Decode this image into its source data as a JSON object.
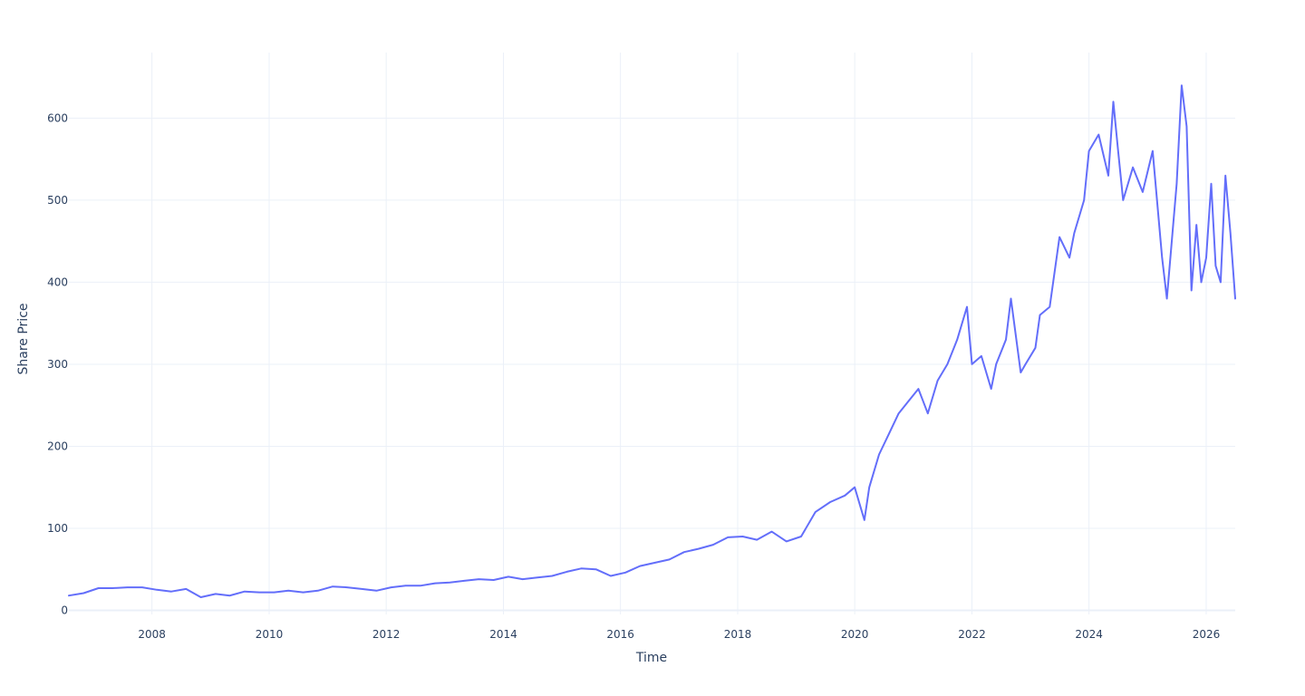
{
  "chart_data": {
    "type": "line",
    "title": "",
    "xlabel": "Time",
    "ylabel": "Share Price",
    "x_tick_labels": [
      "2008",
      "2010",
      "2012",
      "2014",
      "2016",
      "2018",
      "2020",
      "2022",
      "2024",
      "2026"
    ],
    "y_tick_labels": [
      "0",
      "100",
      "200",
      "300",
      "400",
      "500",
      "600"
    ],
    "x_range": [
      "2006-08-01",
      "2026-07-01"
    ],
    "ylim": [
      -5,
      680
    ],
    "grid": true,
    "legend": "none",
    "colors": {
      "line": "#636efa",
      "grid": "#ebf0f8",
      "text": "#2a3f5f",
      "background": "#ffffff"
    },
    "series": [
      {
        "x": [
          "2006-08",
          "2006-11",
          "2007-02",
          "2007-05",
          "2007-08",
          "2007-11",
          "2008-02",
          "2008-05",
          "2008-08",
          "2008-11",
          "2009-02",
          "2009-05",
          "2009-08",
          "2009-11",
          "2010-02",
          "2010-05",
          "2010-08",
          "2010-11",
          "2011-02",
          "2011-05",
          "2011-08",
          "2011-11",
          "2012-02",
          "2012-05",
          "2012-08",
          "2012-11",
          "2013-02",
          "2013-05",
          "2013-08",
          "2013-11",
          "2014-02",
          "2014-05",
          "2014-08",
          "2014-11",
          "2015-02",
          "2015-05",
          "2015-08",
          "2015-11",
          "2016-02",
          "2016-05",
          "2016-08",
          "2016-11",
          "2017-02",
          "2017-05",
          "2017-08",
          "2017-11",
          "2018-02",
          "2018-05",
          "2018-08",
          "2018-11",
          "2019-02",
          "2019-05",
          "2019-08",
          "2019-11",
          "2020-01",
          "2020-03",
          "2020-04",
          "2020-06",
          "2020-08",
          "2020-10",
          "2020-12",
          "2021-02",
          "2021-04",
          "2021-06",
          "2021-08",
          "2021-10",
          "2021-12",
          "2022-01",
          "2022-03",
          "2022-05",
          "2022-06",
          "2022-08",
          "2022-09",
          "2022-11",
          "2022-12",
          "2023-02",
          "2023-03",
          "2023-05",
          "2023-07",
          "2023-09",
          "2023-10",
          "2023-12",
          "2024-01",
          "2024-03",
          "2024-05",
          "2024-06",
          "2024-07",
          "2024-08",
          "2024-10",
          "2024-12",
          "2025-02",
          "2025-04",
          "2025-05",
          "2025-07",
          "2025-08",
          "2025-09",
          "2025-10",
          "2025-11",
          "2025-12",
          "2026-01",
          "2026-02",
          "2026-03",
          "2026-04",
          "2026-05",
          "2026-06",
          "2026-07"
        ],
        "y": [
          18,
          21,
          27,
          27,
          28,
          28,
          25,
          23,
          26,
          16,
          20,
          18,
          23,
          22,
          22,
          24,
          22,
          24,
          29,
          28,
          26,
          24,
          28,
          30,
          30,
          33,
          34,
          36,
          38,
          37,
          41,
          38,
          40,
          42,
          47,
          51,
          50,
          42,
          46,
          54,
          58,
          62,
          71,
          75,
          80,
          89,
          90,
          86,
          96,
          84,
          90,
          120,
          132,
          140,
          150,
          110,
          150,
          190,
          215,
          240,
          255,
          270,
          240,
          280,
          300,
          330,
          370,
          300,
          310,
          270,
          300,
          330,
          380,
          290,
          300,
          320,
          360,
          370,
          455,
          430,
          460,
          500,
          560,
          580,
          530,
          620,
          560,
          500,
          540,
          510,
          560,
          430,
          380,
          520,
          640,
          590,
          390,
          470,
          400,
          430,
          520,
          420,
          400,
          530,
          460,
          380
        ]
      }
    ]
  }
}
